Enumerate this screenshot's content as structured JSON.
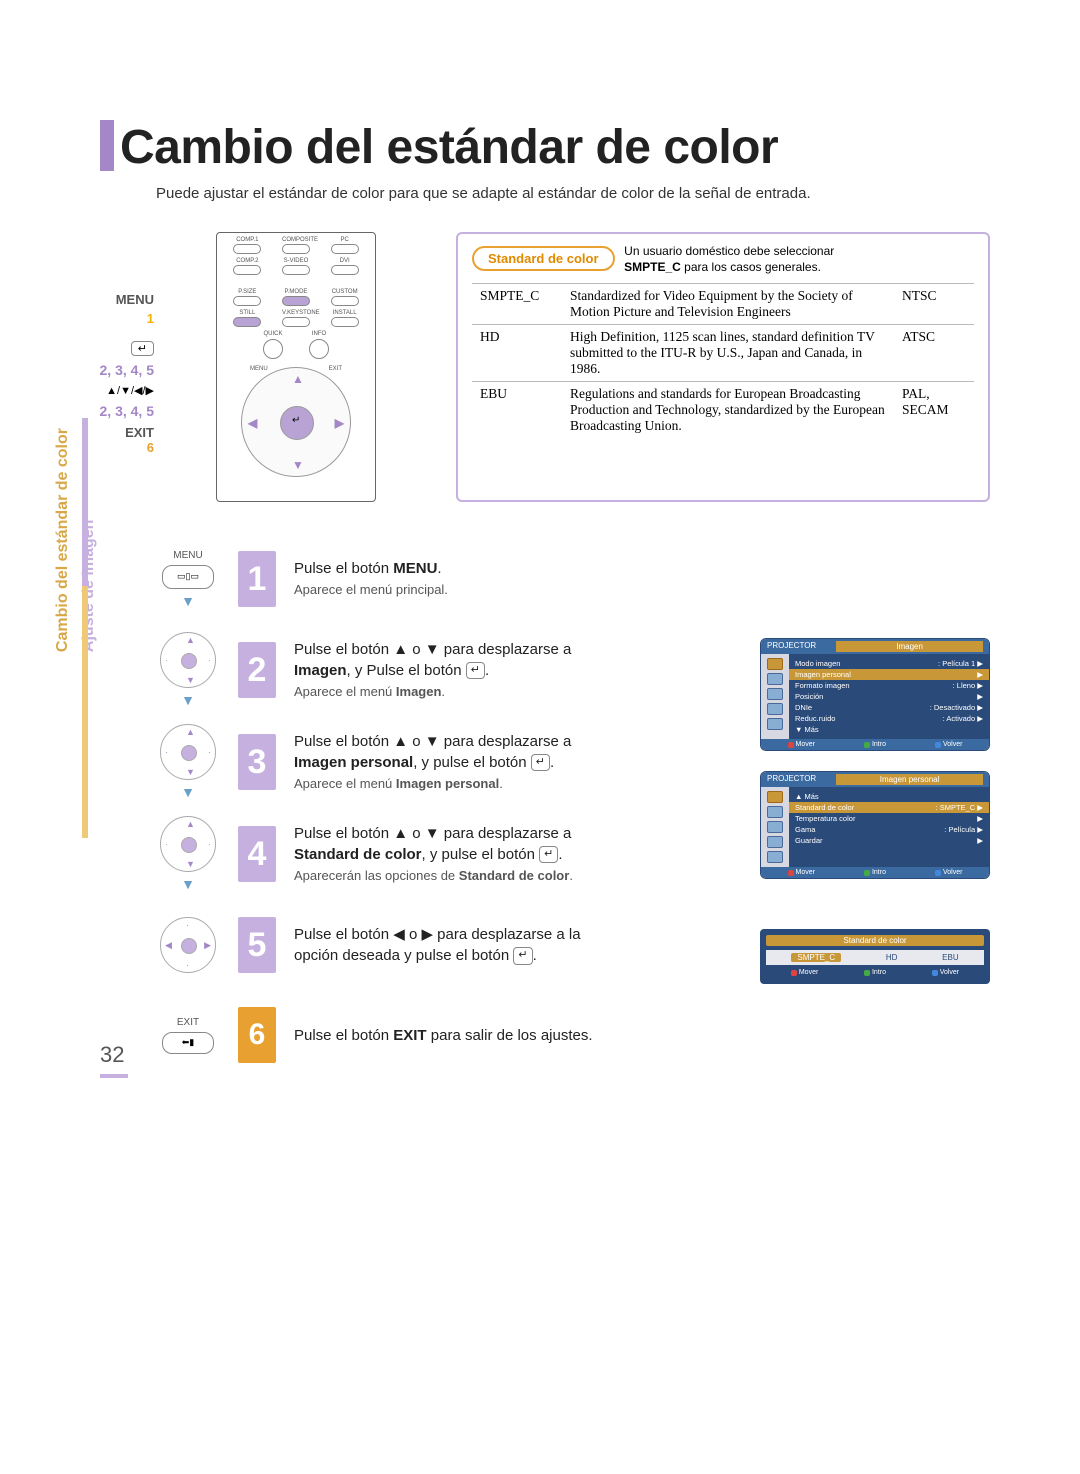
{
  "page_number": "32",
  "title": "Cambio del estándar de color",
  "intro": "Puede ajustar el estándar de color para que se adapte al estándar de color de la señal de entrada.",
  "sidebar": {
    "section1": "Ajuste de imagen",
    "section2": "Cambio del estándar de color"
  },
  "remote_labels": {
    "menu": "MENU",
    "menu_step": "1",
    "enter_steps": "2, 3, 4, 5",
    "dpad_arrows": "▲/▼/◀/▶",
    "dpad_steps": "2, 3, 4, 5",
    "exit": "EXIT",
    "exit_step": "6"
  },
  "remote_buttons": {
    "row1": [
      "COMP.1",
      "COMPOSITE",
      "PC"
    ],
    "row2": [
      "COMP.2",
      "S-VIDEO",
      "DVI"
    ],
    "row3": [
      "P.SIZE",
      "P.MODE",
      "CUSTOM"
    ],
    "row4": [
      "STILL",
      "V.KEYSTONE",
      "INSTALL"
    ],
    "quick": "QUICK",
    "info": "INFO",
    "menu": "MENU",
    "exit": "EXIT"
  },
  "badge": {
    "label": "Standard de color",
    "desc_line1": "Un usuario doméstico debe seleccionar",
    "desc_line2_prefix": "SMPTE_C",
    "desc_line2_rest": " para los casos generales."
  },
  "table": {
    "rows": [
      {
        "k": "SMPTE_C",
        "v": "Standardized for Video Equipment by the Society of Motion Picture and Television Engineers",
        "r": "NTSC"
      },
      {
        "k": "HD",
        "v": "High Definition, 1125 scan lines, standard definition TV submitted to the ITU-R by U.S., Japan and Canada, in 1986.",
        "r": "ATSC"
      },
      {
        "k": "EBU",
        "v": "Regulations and standards for European Broadcasting Production and Technology, standardized by the European Broadcasting Union.",
        "r": "PAL, SECAM"
      }
    ]
  },
  "steps": [
    {
      "n": "1",
      "icon": "menu",
      "main_pre": "Pulse el botón ",
      "main_bold": "MENU",
      "main_post": ".",
      "sub": "Aparece el menú principal."
    },
    {
      "n": "2",
      "icon": "dpad",
      "l1": "Pulse el botón ▲ o ▼ para desplazarse a",
      "l2_bold": "Imagen",
      "l2_rest": ", y Pulse el botón ",
      "enter": true,
      "sub": "Aparece el menú ",
      "sub_bold": "Imagen",
      "sub_post": "."
    },
    {
      "n": "3",
      "icon": "dpad",
      "l1": "Pulse el botón ▲ o ▼ para desplazarse a",
      "l2_bold": "Imagen personal",
      "l2_rest": ", y pulse el botón ",
      "enter": true,
      "sub": "Aparece el menú ",
      "sub_bold": "Imagen personal",
      "sub_post": "."
    },
    {
      "n": "4",
      "icon": "dpad",
      "l1": "Pulse el botón ▲ o ▼ para desplazarse a",
      "l2_bold": "Standard de color",
      "l2_rest": ", y pulse el botón ",
      "enter": true,
      "sub": "Aparecerán las opciones de ",
      "sub_bold": "Standard de color",
      "sub_post": "."
    },
    {
      "n": "5",
      "icon": "dpad-lr",
      "l1": "Pulse el botón ◀ o ▶ para desplazarse a la",
      "l2": "opción deseada y pulse el botón ",
      "enter": true
    },
    {
      "n": "6",
      "icon": "exit",
      "orange": true,
      "main_pre": "Pulse el botón ",
      "main_bold": "EXIT",
      "main_post": " para salir de los ajustes."
    }
  ],
  "osd": {
    "imagen": {
      "header": "PROJECTOR",
      "title": "Imagen",
      "rows": [
        {
          "l": "Modo imagen",
          "r": ": Película 1",
          "arrow": "▶"
        },
        {
          "l": "Imagen personal",
          "r": "",
          "arrow": "▶",
          "hl": true
        },
        {
          "l": "Formato imagen",
          "r": ": Lleno",
          "arrow": "▶"
        },
        {
          "l": "Posición",
          "r": "",
          "arrow": "▶"
        },
        {
          "l": "DNIe",
          "r": ": Desactivado",
          "arrow": "▶"
        },
        {
          "l": "Reduc.ruido",
          "r": ": Activado",
          "arrow": "▶"
        },
        {
          "l": "▼ Más",
          "r": "",
          "arrow": ""
        }
      ],
      "foot": [
        "Mover",
        "Intro",
        "Volver"
      ]
    },
    "personal": {
      "header": "PROJECTOR",
      "title": "Imagen personal",
      "rows": [
        {
          "l": "▲ Más",
          "r": "",
          "arrow": ""
        },
        {
          "l": "Standard de color",
          "r": ": SMPTE_C",
          "arrow": "▶",
          "hl": true
        },
        {
          "l": "Temperatura color",
          "r": "",
          "arrow": "▶"
        },
        {
          "l": "Gama",
          "r": ": Película",
          "arrow": "▶"
        },
        {
          "l": "Guardar",
          "r": "",
          "arrow": "▶"
        }
      ],
      "foot": [
        "Mover",
        "Intro",
        "Volver"
      ]
    },
    "select": {
      "title": "Standard de color",
      "opts": [
        "SMPTE_C",
        "HD",
        "EBU"
      ],
      "foot": [
        "Mover",
        "Intro",
        "Volver"
      ]
    }
  },
  "enter_symbol": "↵",
  "menu_icon": "▭▯▭",
  "colors": {
    "purple": "#c5b0df",
    "purple_deep": "#a387c7",
    "orange": "#e8a030",
    "orange_text": "#e08a00",
    "osd_blue": "#2a4a7a",
    "osd_amber": "#c89838"
  }
}
